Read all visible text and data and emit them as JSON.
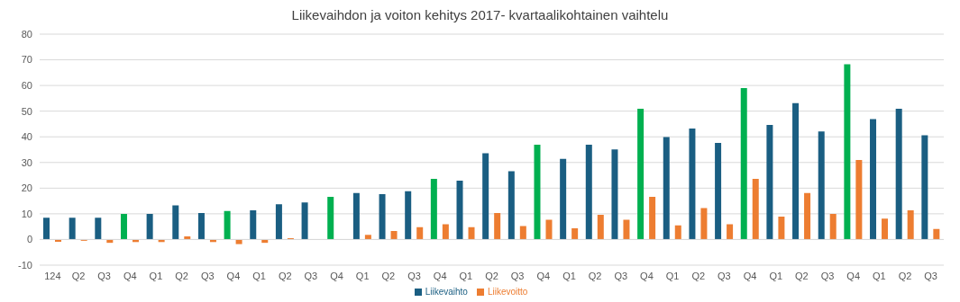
{
  "chart_data": {
    "type": "bar",
    "title": "Liikevaihdon ja voiton kehitys 2017- kvartaalikohtainen vaihtelu",
    "categories": [
      "124",
      "Q2",
      "Q3",
      "Q4",
      "Q1",
      "Q2",
      "Q3",
      "Q4",
      "Q1",
      "Q2",
      "Q3",
      "Q4",
      "Q1",
      "Q2",
      "Q3",
      "Q4",
      "Q1",
      "Q2",
      "Q3",
      "Q4",
      "Q1",
      "Q2",
      "Q3",
      "Q4",
      "Q1",
      "Q2",
      "Q3",
      "Q4",
      "Q1",
      "Q2",
      "Q3",
      "Q4",
      "Q1",
      "Q2",
      "Q3"
    ],
    "series": [
      {
        "name": "Liikevaihto",
        "color": "#1a5e82",
        "colors": [
          "#1a5e82",
          "#1a5e82",
          "#1a5e82",
          "#00b050",
          "#1a5e82",
          "#1a5e82",
          "#1a5e82",
          "#00b050",
          "#1a5e82",
          "#1a5e82",
          "#1a5e82",
          "#00b050",
          "#1a5e82",
          "#1a5e82",
          "#1a5e82",
          "#00b050",
          "#1a5e82",
          "#1a5e82",
          "#1a5e82",
          "#00b050",
          "#1a5e82",
          "#1a5e82",
          "#1a5e82",
          "#00b050",
          "#1a5e82",
          "#1a5e82",
          "#1a5e82",
          "#00b050",
          "#1a5e82",
          "#1a5e82",
          "#1a5e82",
          "#00b050",
          "#1a5e82",
          "#1a5e82",
          "#1a5e82"
        ],
        "values": [
          8.5,
          8.5,
          8.5,
          10,
          10,
          13.3,
          10.3,
          11.1,
          11.4,
          13.7,
          14.4,
          16.6,
          18.1,
          17.7,
          18.8,
          23.6,
          22.9,
          33.6,
          26.6,
          36.9,
          31.4,
          36.9,
          35.1,
          50.9,
          39.9,
          43.2,
          37.6,
          59,
          44.6,
          53.1,
          42.1,
          68.3,
          46.9,
          50.9,
          40.6
        ]
      },
      {
        "name": "Liikevoitto",
        "color": "#ed7d31",
        "values": [
          -0.9,
          -0.5,
          -1.3,
          -1,
          -1,
          1.2,
          -1,
          -1.8,
          -1.3,
          0.5,
          0,
          0,
          1.8,
          3.3,
          4.8,
          5.9,
          4.8,
          10.3,
          5.2,
          7.7,
          4.4,
          9.6,
          7.7,
          16.6,
          5.5,
          12.2,
          5.9,
          23.6,
          8.9,
          18.1,
          10,
          31,
          8.1,
          11.4,
          4.1
        ]
      }
    ],
    "ylim": [
      -10,
      80
    ],
    "yticks": [
      -10,
      0,
      10,
      20,
      30,
      40,
      50,
      60,
      70,
      80
    ],
    "grid": "y",
    "legend": "bottom"
  }
}
